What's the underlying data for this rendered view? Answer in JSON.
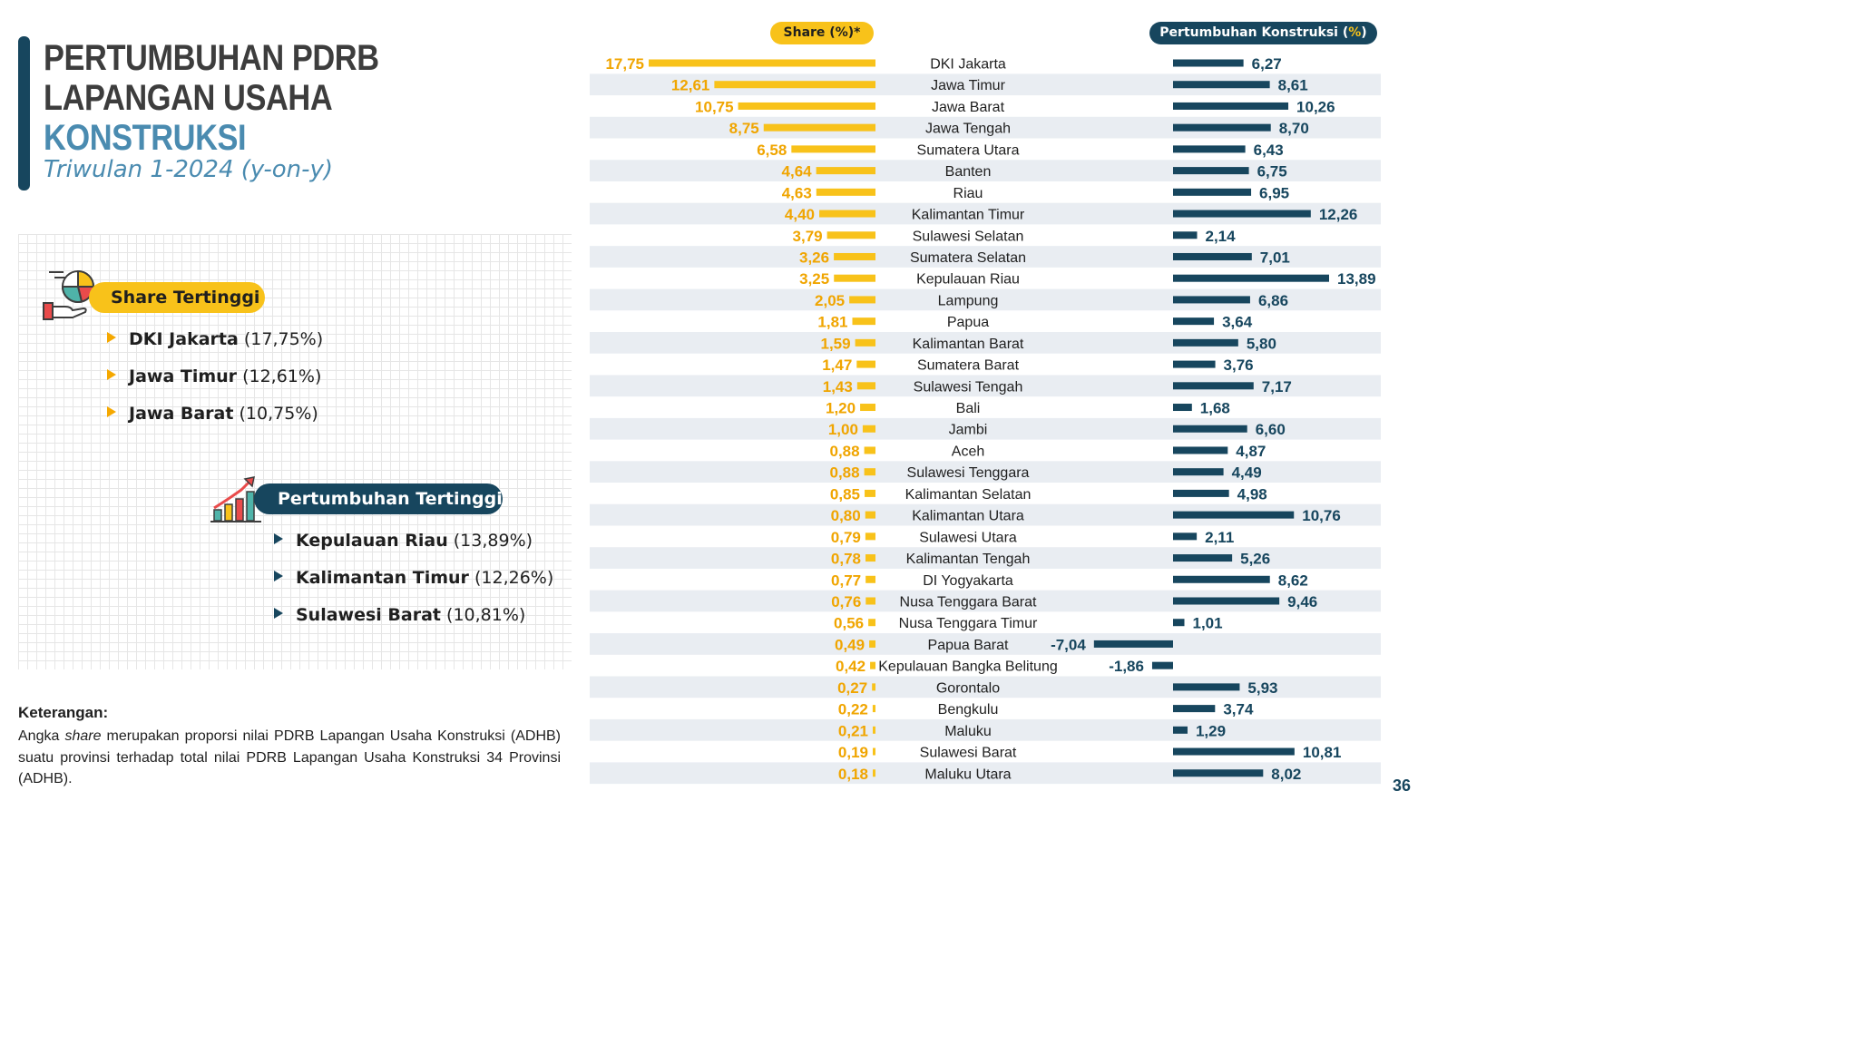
{
  "title": {
    "line1": "PERTUMBUHAN PDRB",
    "line2": "LAPANGAN USAHA",
    "line3": "KONSTRUKSI",
    "subtitle": "Triwulan 1-2024 (y-on-y)"
  },
  "highlights": {
    "share": {
      "label": "Share Tertinggi",
      "items": [
        {
          "name": "DKI Jakarta",
          "value": "(17,75%)"
        },
        {
          "name": "Jawa Timur",
          "value": "(12,61%)"
        },
        {
          "name": "Jawa Barat",
          "value": "(10,75%)"
        }
      ]
    },
    "growth": {
      "label": "Pertumbuhan Tertinggi",
      "items": [
        {
          "name": "Kepulauan Riau",
          "value": "(13,89%)"
        },
        {
          "name": "Kalimantan Timur",
          "value": "(12,26%)"
        },
        {
          "name": "Sulawesi Barat",
          "value": "(10,81%)"
        }
      ]
    }
  },
  "note": {
    "title": "Keterangan",
    "text_before": "Angka ",
    "text_italic": "share",
    "text_after": " merupakan proporsi nilai PDRB Lapangan Usaha Konstruksi (ADHB) suatu provinsi terhadap total nilai PDRB Lapangan Usaha Konstruksi 34 Provinsi (ADHB)."
  },
  "page_number": "36",
  "colors": {
    "share_bar": "#f8c21a",
    "share_label": "#f0a500",
    "growth_bar": "#17465e",
    "title_dark": "#3d3d3d",
    "title_accent": "#4a8bb0",
    "row_stripe": "#e9edf2"
  },
  "chart_data": {
    "type": "bar",
    "share_header": "Share (%)*",
    "growth_header_main": "Pertumbuhan Konstruksi (",
    "growth_header_pct": "%",
    "growth_header_end": ")",
    "categories": [
      "DKI Jakarta",
      "Jawa Timur",
      "Jawa Barat",
      "Jawa Tengah",
      "Sumatera Utara",
      "Banten",
      "Riau",
      "Kalimantan Timur",
      "Sulawesi Selatan",
      "Sumatera Selatan",
      "Kepulauan Riau",
      "Lampung",
      "Papua",
      "Kalimantan Barat",
      "Sumatera Barat",
      "Sulawesi Tengah",
      "Bali",
      "Jambi",
      "Aceh",
      "Sulawesi Tenggara",
      "Kalimantan Selatan",
      "Kalimantan Utara",
      "Sulawesi Utara",
      "Kalimantan Tengah",
      "DI Yogyakarta",
      "Nusa Tenggara Barat",
      "Nusa Tenggara Timur",
      "Papua Barat",
      "Kepulauan Bangka Belitung",
      "Gorontalo",
      "Bengkulu",
      "Maluku",
      "Sulawesi Barat",
      "Maluku Utara"
    ],
    "series": [
      {
        "name": "Share (%)*",
        "values": [
          17.75,
          12.61,
          10.75,
          8.75,
          6.58,
          4.64,
          4.63,
          4.4,
          3.79,
          3.26,
          3.25,
          2.05,
          1.81,
          1.59,
          1.47,
          1.43,
          1.2,
          1.0,
          0.88,
          0.88,
          0.85,
          0.8,
          0.79,
          0.78,
          0.77,
          0.76,
          0.56,
          0.49,
          0.42,
          0.27,
          0.22,
          0.21,
          0.19,
          0.18
        ]
      },
      {
        "name": "Pertumbuhan Konstruksi (%)",
        "values": [
          6.27,
          8.61,
          10.26,
          8.7,
          6.43,
          6.75,
          6.95,
          12.26,
          2.14,
          7.01,
          13.89,
          6.86,
          3.64,
          5.8,
          3.76,
          7.17,
          1.68,
          6.6,
          4.87,
          4.49,
          4.98,
          10.76,
          2.11,
          5.26,
          8.62,
          9.46,
          1.01,
          -7.04,
          -1.86,
          5.93,
          3.74,
          1.29,
          10.81,
          8.02
        ]
      }
    ],
    "share_labels": [
      "17,75",
      "12,61",
      "10,75",
      "8,75",
      "6,58",
      "4,64",
      "4,63",
      "4,40",
      "3,79",
      "3,26",
      "3,25",
      "2,05",
      "1,81",
      "1,59",
      "1,47",
      "1,43",
      "1,20",
      "1,00",
      "0,88",
      "0,88",
      "0,85",
      "0,80",
      "0,79",
      "0,78",
      "0,77",
      "0,76",
      "0,56",
      "0,49",
      "0,42",
      "0,27",
      "0,22",
      "0,21",
      "0,19",
      "0,18"
    ],
    "growth_labels": [
      "6,27",
      "8,61",
      "10,26",
      "8,70",
      "6,43",
      "6,75",
      "6,95",
      "12,26",
      "2,14",
      "7,01",
      "13,89",
      "6,86",
      "3,64",
      "5,80",
      "3,76",
      "7,17",
      "1,68",
      "6,60",
      "4,87",
      "4,49",
      "4,98",
      "10,76",
      "2,11",
      "5,26",
      "8,62",
      "9,46",
      "1,01",
      "-7,04",
      "-1,86",
      "5,93",
      "3,74",
      "1,29",
      "10,81",
      "8,02"
    ]
  }
}
